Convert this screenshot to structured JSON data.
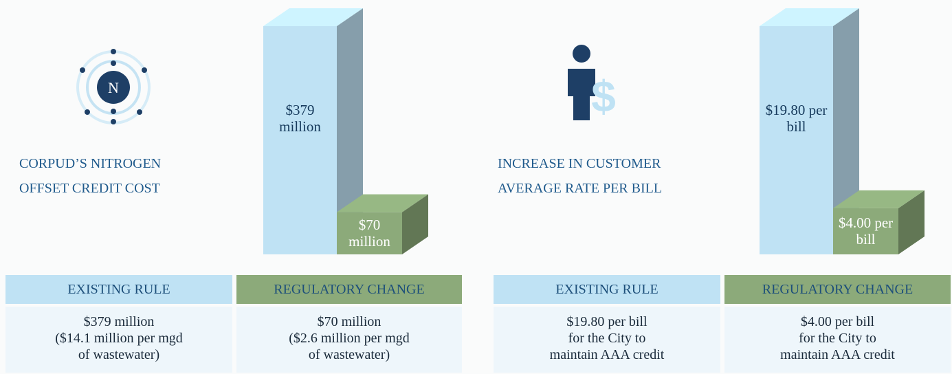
{
  "chart_data": [
    {
      "type": "bar",
      "title": "CORPUD’S NITROGEN OFFSET CREDIT COST",
      "categories": [
        "EXISTING RULE",
        "REGULATORY CHANGE"
      ],
      "values": [
        379,
        70
      ],
      "value_labels": [
        "$379 million",
        "$70 million"
      ],
      "colors": [
        "#bfe2f4",
        "#8caa7a"
      ],
      "ylim": [
        0,
        379
      ],
      "notes": [
        [
          "$379 million",
          "($14.1 million per mgd",
          "of wastewater)"
        ],
        [
          "$70 million",
          "($2.6 million per mgd",
          "of wastewater)"
        ]
      ]
    },
    {
      "type": "bar",
      "title": "INCREASE IN CUSTOMER AVERAGE RATE PER BILL",
      "categories": [
        "EXISTING RULE",
        "REGULATORY CHANGE"
      ],
      "values": [
        19.8,
        4.0
      ],
      "value_labels": [
        "$19.80 per bill",
        "$4.00 per bill"
      ],
      "colors": [
        "#bfe2f4",
        "#8caa7a"
      ],
      "ylim": [
        0,
        19.8
      ],
      "notes": [
        [
          "$19.80 per bill",
          "for the City to",
          "maintain AAA credit"
        ],
        [
          "$4.00 per bill",
          "for the City to",
          "maintain AAA credit"
        ]
      ]
    }
  ]
}
